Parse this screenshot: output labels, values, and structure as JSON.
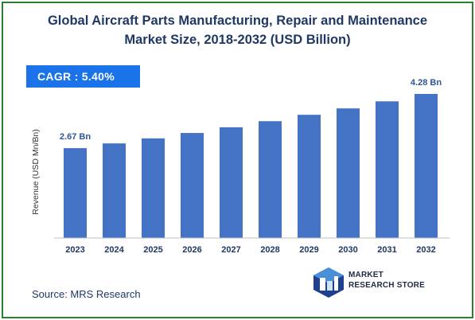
{
  "chart_data": {
    "type": "bar",
    "title": "Global Aircraft Parts Manufacturing, Repair and Maintenance Market Size, 2018-2032 (USD Billion)",
    "title_lines": [
      "Global Aircraft Parts Manufacturing, Repair and Maintenance",
      "Market Size, 2018-2032 (USD Billion)"
    ],
    "ylabel": "Revenue (USD Mn/Bn)",
    "xlabel": "",
    "categories": [
      "2023",
      "2024",
      "2025",
      "2026",
      "2027",
      "2028",
      "2029",
      "2030",
      "2031",
      "2032"
    ],
    "values": [
      2.67,
      2.81,
      2.96,
      3.12,
      3.29,
      3.47,
      3.66,
      3.85,
      4.06,
      4.28
    ],
    "ylim": [
      0,
      4.28
    ],
    "data_labels": [
      {
        "index": 0,
        "text": "2.67 Bn"
      },
      {
        "index": 9,
        "text": "4.28 Bn"
      }
    ],
    "bar_color": "#4472c4",
    "label_color": "#2f5597",
    "grid": false,
    "legend": "none"
  },
  "cagr": {
    "text": "CAGR :  5.40%"
  },
  "source": {
    "text": "Source: MRS Research"
  },
  "logo": {
    "line1": "MARKET",
    "line2": "RESEARCH STORE",
    "icon": "mrs-logo-icon"
  },
  "colors": {
    "frame": "#2e7d32",
    "title": "#1f3864",
    "cagr_bg": "#1a73e8"
  }
}
